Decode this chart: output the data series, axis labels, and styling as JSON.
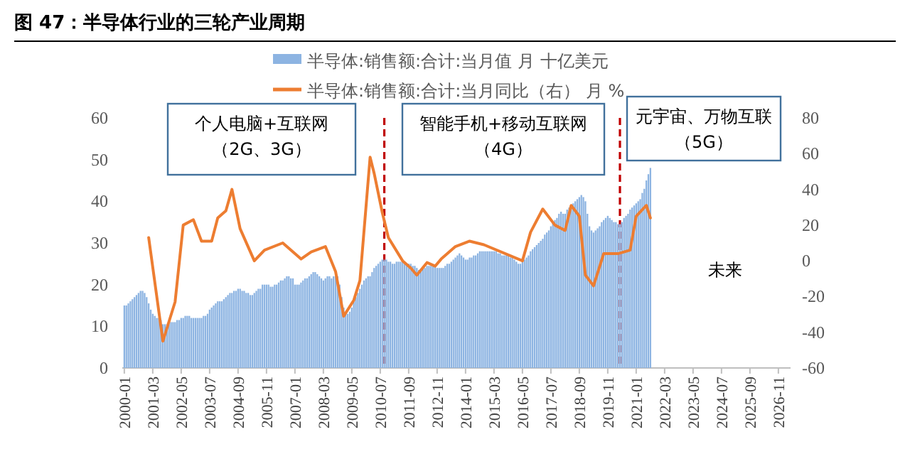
{
  "chart_data": {
    "type": "bar",
    "title": "图 47：半导体行业的三轮产业周期",
    "legend": "top",
    "x": [
      "2000-01",
      "2000-02",
      "2000-03",
      "2000-04",
      "2000-05",
      "2000-06",
      "2000-07",
      "2000-08",
      "2000-09",
      "2000-10",
      "2000-11",
      "2000-12",
      "2001-01",
      "2001-02",
      "2001-03",
      "2001-04",
      "2001-05",
      "2001-06",
      "2001-07",
      "2001-08",
      "2001-09",
      "2001-10",
      "2001-11",
      "2001-12",
      "2002-01",
      "2002-02",
      "2002-03",
      "2002-04",
      "2002-05",
      "2002-06",
      "2002-07",
      "2002-08",
      "2002-09",
      "2002-10",
      "2002-11",
      "2002-12",
      "2003-01",
      "2003-02",
      "2003-03",
      "2003-04",
      "2003-05",
      "2003-06",
      "2003-07",
      "2003-08",
      "2003-09",
      "2003-10",
      "2003-11",
      "2003-12",
      "2004-01",
      "2004-02",
      "2004-03",
      "2004-04",
      "2004-05",
      "2004-06",
      "2004-07",
      "2004-08",
      "2004-09",
      "2004-10",
      "2004-11",
      "2004-12",
      "2005-01",
      "2005-02",
      "2005-03",
      "2005-04",
      "2005-05",
      "2005-06",
      "2005-07",
      "2005-08",
      "2005-09",
      "2005-10",
      "2005-11",
      "2005-12",
      "2006-01",
      "2006-02",
      "2006-03",
      "2006-04",
      "2006-05",
      "2006-06",
      "2006-07",
      "2006-08",
      "2006-09",
      "2006-10",
      "2006-11",
      "2006-12",
      "2007-01",
      "2007-02",
      "2007-03",
      "2007-04",
      "2007-05",
      "2007-06",
      "2007-07",
      "2007-08",
      "2007-09",
      "2007-10",
      "2007-11",
      "2007-12",
      "2008-01",
      "2008-02",
      "2008-03",
      "2008-04",
      "2008-05",
      "2008-06",
      "2008-07",
      "2008-08",
      "2008-09",
      "2008-10",
      "2008-11",
      "2008-12",
      "2009-01",
      "2009-02",
      "2009-03",
      "2009-04",
      "2009-05",
      "2009-06",
      "2009-07",
      "2009-08",
      "2009-09",
      "2009-10",
      "2009-11",
      "2009-12",
      "2010-01",
      "2010-02",
      "2010-03",
      "2010-04",
      "2010-05",
      "2010-06",
      "2010-07",
      "2010-08",
      "2010-09",
      "2010-10",
      "2010-11",
      "2010-12",
      "2011-01",
      "2011-02",
      "2011-03",
      "2011-04",
      "2011-05",
      "2011-06",
      "2011-07",
      "2011-08",
      "2011-09",
      "2011-10",
      "2011-11",
      "2011-12",
      "2012-01",
      "2012-02",
      "2012-03",
      "2012-04",
      "2012-05",
      "2012-06",
      "2012-07",
      "2012-08",
      "2012-09",
      "2012-10",
      "2012-11",
      "2012-12",
      "2013-01",
      "2013-02",
      "2013-03",
      "2013-04",
      "2013-05",
      "2013-06",
      "2013-07",
      "2013-08",
      "2013-09",
      "2013-10",
      "2013-11",
      "2013-12",
      "2014-01",
      "2014-02",
      "2014-03",
      "2014-04",
      "2014-05",
      "2014-06",
      "2014-07",
      "2014-08",
      "2014-09",
      "2014-10",
      "2014-11",
      "2014-12",
      "2015-01",
      "2015-02",
      "2015-03",
      "2015-04",
      "2015-05",
      "2015-06",
      "2015-07",
      "2015-08",
      "2015-09",
      "2015-10",
      "2015-11",
      "2015-12",
      "2016-01",
      "2016-02",
      "2016-03",
      "2016-04",
      "2016-05",
      "2016-06",
      "2016-07",
      "2016-08",
      "2016-09",
      "2016-10",
      "2016-11",
      "2016-12",
      "2017-01",
      "2017-02",
      "2017-03",
      "2017-04",
      "2017-05",
      "2017-06",
      "2017-07",
      "2017-08",
      "2017-09",
      "2017-10",
      "2017-11",
      "2017-12",
      "2018-01",
      "2018-02",
      "2018-03",
      "2018-04",
      "2018-05",
      "2018-06",
      "2018-07",
      "2018-08",
      "2018-09",
      "2018-10",
      "2018-11",
      "2018-12",
      "2019-01",
      "2019-02",
      "2019-03",
      "2019-04",
      "2019-05",
      "2019-06",
      "2019-07",
      "2019-08",
      "2019-09",
      "2019-10",
      "2019-11",
      "2019-12",
      "2020-01",
      "2020-02",
      "2020-03",
      "2020-04",
      "2020-05",
      "2020-06",
      "2020-07",
      "2020-08",
      "2020-09",
      "2020-10",
      "2020-11",
      "2020-12",
      "2021-01",
      "2021-02",
      "2021-03",
      "2021-04",
      "2021-05",
      "2021-06",
      "2021-07",
      "2021-08"
    ],
    "series": [
      {
        "name": "半导体:销售额:合计:当月值 月 十亿美元",
        "color": "#8db4e2",
        "values": [
          15,
          15,
          15.5,
          16,
          16.5,
          17,
          17.5,
          18,
          18.5,
          18.5,
          18,
          17,
          15.5,
          14,
          13,
          12.5,
          12,
          12,
          11.5,
          10.5,
          10.5,
          10.5,
          10.5,
          11,
          11,
          11,
          11.5,
          11.5,
          12,
          12,
          12.5,
          12.5,
          12.5,
          12,
          12,
          12,
          12,
          12,
          12,
          12.5,
          12.5,
          13,
          14,
          14.5,
          15,
          15.5,
          16,
          16,
          16,
          16.5,
          17,
          17.5,
          18,
          18,
          18.5,
          18.5,
          19,
          19,
          18.5,
          18.5,
          18,
          18,
          17.5,
          17.5,
          18,
          18.5,
          19,
          19,
          20,
          20,
          20,
          20,
          19.5,
          19.5,
          20,
          20,
          20.5,
          21,
          21,
          21.5,
          22,
          22,
          21.5,
          21.5,
          20,
          20,
          20,
          20.5,
          21,
          21.5,
          21.5,
          22,
          22.5,
          23,
          23,
          22.5,
          22,
          21.5,
          21,
          21.5,
          22,
          22,
          21.5,
          22,
          22,
          22,
          20,
          17,
          14.5,
          13,
          13,
          13.5,
          14.5,
          16,
          17,
          18,
          19,
          20,
          21,
          21.5,
          22,
          22,
          23,
          24,
          24.5,
          25,
          25.5,
          26,
          26,
          26,
          25.5,
          25.5,
          25,
          25,
          25.5,
          25.5,
          25.5,
          25.5,
          25,
          25,
          25,
          25,
          24.5,
          24.5,
          24,
          23.5,
          23.5,
          24,
          24,
          24.5,
          24.5,
          24.5,
          24.5,
          24.5,
          24,
          24,
          24,
          24,
          24.5,
          25,
          25,
          25.5,
          26,
          26.5,
          27,
          27.5,
          27,
          26.5,
          26,
          26,
          26.5,
          26.5,
          27,
          27,
          27.5,
          28,
          28,
          28,
          28,
          28,
          28,
          28,
          28,
          28,
          27.5,
          27.5,
          27,
          27,
          27,
          27,
          26.5,
          26.5,
          26,
          25.5,
          25,
          25,
          25.5,
          26,
          26.5,
          27,
          28,
          28.5,
          29,
          29.5,
          30,
          30.5,
          31,
          32,
          32.5,
          33,
          34,
          35,
          35.5,
          36,
          37,
          37.5,
          37,
          37,
          38,
          38.5,
          39,
          39.5,
          40,
          40.5,
          41,
          41.5,
          41,
          40,
          37,
          34,
          33,
          32.5,
          33,
          33.5,
          34,
          35,
          35.5,
          36,
          36.5,
          36,
          35.5,
          35,
          35,
          34.5,
          34.5,
          35,
          36,
          36.5,
          37,
          38,
          38.5,
          39,
          39.5,
          40,
          40.5,
          42,
          43,
          45,
          46.5,
          48
        ]
      },
      {
        "name": "半导体:销售额:合计:当月同比（右） 月 %",
        "type": "line",
        "axis": "y2",
        "color": "#ed7d31",
        "x": [
          "2001-01",
          "2001-08",
          "2002-02",
          "2002-06",
          "2002-11",
          "2003-03",
          "2003-08",
          "2003-11",
          "2004-03",
          "2004-06",
          "2004-10",
          "2005-05",
          "2005-10",
          "2006-07",
          "2007-04",
          "2007-09",
          "2008-04",
          "2008-09",
          "2009-01",
          "2009-06",
          "2009-09",
          "2010-02",
          "2010-04",
          "2010-08",
          "2010-11",
          "2011-06",
          "2011-10",
          "2012-01",
          "2012-06",
          "2012-10",
          "2013-01",
          "2013-08",
          "2014-03",
          "2014-10",
          "2016-05",
          "2016-09",
          "2017-03",
          "2017-09",
          "2018-02",
          "2018-05",
          "2018-09",
          "2018-12",
          "2019-04",
          "2019-09",
          "2020-04",
          "2020-10",
          "2021-01",
          "2021-06",
          "2021-08"
        ],
        "values": [
          13,
          -45,
          -23,
          20,
          23,
          11,
          11,
          24,
          28,
          40,
          18,
          0,
          6,
          10,
          1,
          5,
          8,
          -6,
          -31,
          -22,
          -11,
          58,
          49,
          27,
          13,
          0,
          -4,
          -8,
          -1,
          -3,
          1,
          8,
          11,
          9,
          0,
          16,
          29,
          20,
          17,
          31,
          25,
          -8,
          -14,
          4,
          4,
          6,
          25,
          31,
          24
        ]
      }
    ],
    "xlim": [
      "1999-12",
      "2027-05"
    ],
    "xticks": [
      "2000-01",
      "2001-03",
      "2002-05",
      "2003-07",
      "2004-09",
      "2005-11",
      "2007-01",
      "2008-03",
      "2009-05",
      "2010-07",
      "2011-09",
      "2012-11",
      "2014-01",
      "2015-03",
      "2016-05",
      "2017-07",
      "2018-09",
      "2019-11",
      "2021-01",
      "2022-03",
      "2023-05",
      "2024-07",
      "2025-09",
      "2026-11"
    ],
    "ylim": [
      0,
      60
    ],
    "yticks": [
      0,
      10,
      20,
      30,
      40,
      50,
      60
    ],
    "y2lim": [
      -60,
      80
    ],
    "y2ticks": [
      -60,
      -40,
      -20,
      0,
      20,
      40,
      60,
      80
    ],
    "ref_lines": [
      {
        "axis": "x",
        "value": "2010-09",
        "color": "#c00000",
        "line_style": "dashed"
      },
      {
        "axis": "x",
        "value": "2020-05",
        "color": "#c00000",
        "line_style": "dashed"
      }
    ],
    "annotations": [
      "个人电脑+互联网",
      "（2G、3G）",
      "智能手机+移动互联网",
      "（4G）",
      "元宇宙、万物互联",
      "（5G）",
      "未来"
    ]
  }
}
